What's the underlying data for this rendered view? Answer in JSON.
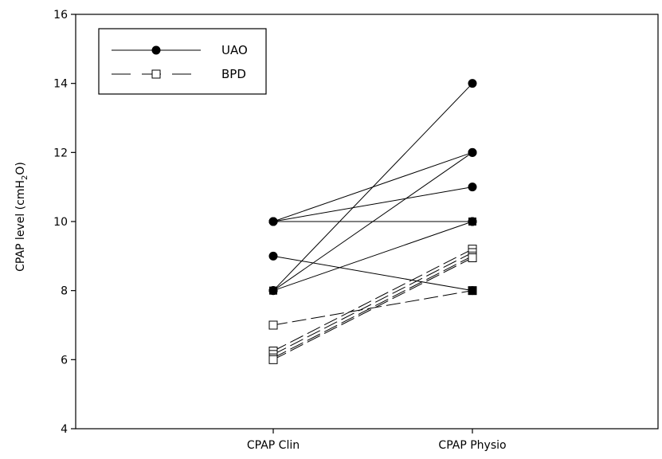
{
  "chart_data": {
    "type": "line",
    "categories": [
      "CPAP Clin",
      "CPAP Physio"
    ],
    "ylabel_main": "CPAP level (cmH",
    "ylabel_sub": "2",
    "ylabel_tail": "O)",
    "ylim": [
      4,
      16
    ],
    "yticks": [
      "4",
      "6",
      "8",
      "10",
      "12",
      "14",
      "16"
    ],
    "grid": false,
    "legend_position": "top-left",
    "series": [
      {
        "name": "UAO",
        "style": "solid",
        "marker": "filled-circle",
        "color": "#000000",
        "pairs": [
          [
            10,
            12
          ],
          [
            10,
            11
          ],
          [
            10,
            10
          ],
          [
            9,
            8
          ],
          [
            8,
            14
          ],
          [
            8,
            12
          ],
          [
            8,
            10
          ]
        ]
      },
      {
        "name": "BPD",
        "style": "dashed",
        "marker": "open-square",
        "color": "#000000",
        "pairs": [
          [
            7,
            8
          ],
          [
            6.25,
            9.2
          ],
          [
            6.15,
            9.1
          ],
          [
            6.05,
            9.0
          ],
          [
            6.0,
            8.95
          ]
        ]
      }
    ],
    "extra_markers": [
      {
        "category": "CPAP Physio",
        "y": 10,
        "marker": "filled-square"
      },
      {
        "category": "CPAP Physio",
        "y": 8,
        "marker": "filled-square"
      },
      {
        "category": "CPAP Clin",
        "y": 8,
        "marker": "filled-square"
      }
    ]
  }
}
